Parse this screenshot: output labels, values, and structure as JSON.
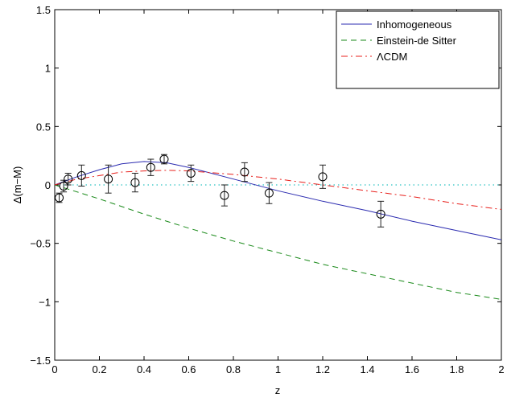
{
  "chart_data": {
    "type": "line",
    "title": "",
    "xlabel": "z",
    "ylabel": "Δ(m−M)",
    "xlim": [
      0,
      2
    ],
    "ylim": [
      -1.5,
      1.5
    ],
    "xticks": [
      "0",
      "0.2",
      "0.4",
      "0.6",
      "0.8",
      "1",
      "1.2",
      "1.4",
      "1.6",
      "1.8",
      "2"
    ],
    "yticks": [
      "−1.5",
      "−1",
      "−0.5",
      "0",
      "0.5",
      "1",
      "1.5"
    ],
    "grid": false,
    "legend_position": "top-right",
    "series": [
      {
        "name": "Inhomogeneous",
        "color": "#2b2bb0",
        "style": "solid",
        "x": [
          0,
          0.1,
          0.2,
          0.3,
          0.4,
          0.5,
          0.6,
          0.8,
          1.0,
          1.2,
          1.4,
          1.6,
          1.8,
          2.0
        ],
        "y": [
          0,
          0.07,
          0.13,
          0.18,
          0.2,
          0.19,
          0.15,
          0.05,
          -0.05,
          -0.14,
          -0.22,
          -0.31,
          -0.39,
          -0.47
        ]
      },
      {
        "name": "Einstein-de Sitter",
        "color": "#1a8a1a",
        "style": "dashed",
        "x": [
          0,
          0.2,
          0.4,
          0.6,
          0.8,
          1.0,
          1.2,
          1.4,
          1.6,
          1.8,
          2.0
        ],
        "y": [
          0,
          -0.12,
          -0.25,
          -0.37,
          -0.48,
          -0.58,
          -0.68,
          -0.76,
          -0.84,
          -0.92,
          -0.98
        ]
      },
      {
        "name": "ΛCDM",
        "color": "#e8201c",
        "style": "dashdot",
        "x": [
          0,
          0.1,
          0.2,
          0.3,
          0.4,
          0.5,
          0.6,
          0.8,
          1.0,
          1.2,
          1.4,
          1.6,
          1.8,
          2.0
        ],
        "y": [
          0,
          0.05,
          0.08,
          0.11,
          0.12,
          0.125,
          0.12,
          0.09,
          0.05,
          0.0,
          -0.05,
          -0.1,
          -0.16,
          -0.21
        ]
      }
    ],
    "reference_line": {
      "y": 0,
      "color": "#2ec4c4",
      "style": "dotted"
    },
    "points": {
      "z": [
        0.02,
        0.04,
        0.06,
        0.12,
        0.24,
        0.36,
        0.43,
        0.49,
        0.61,
        0.76,
        0.85,
        0.96,
        1.2,
        1.46
      ],
      "dm": [
        -0.11,
        -0.01,
        0.05,
        0.08,
        0.05,
        0.02,
        0.15,
        0.22,
        0.1,
        -0.09,
        0.11,
        -0.07,
        0.07,
        -0.25
      ],
      "err": [
        0.04,
        0.05,
        0.05,
        0.09,
        0.12,
        0.08,
        0.07,
        0.04,
        0.07,
        0.09,
        0.08,
        0.09,
        0.1,
        0.11
      ]
    }
  }
}
